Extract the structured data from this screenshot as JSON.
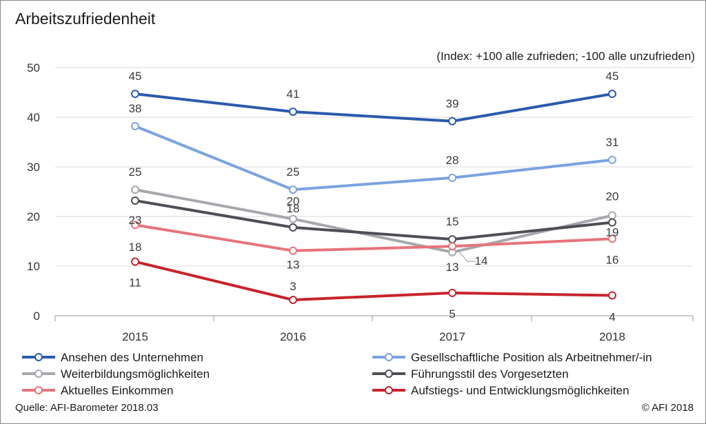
{
  "title": "Arbeitszufriedenheit",
  "subtitle": "(Index: +100 alle zufrieden; -100 alle unzufrieden)",
  "source": "Quelle: AFI-Barometer 2018.03",
  "copyright": "© AFI 2018",
  "chart_data": {
    "type": "line",
    "title": "Arbeitszufriedenheit",
    "subtitle": "(Index: +100 alle zufrieden; -100 alle unzufrieden)",
    "x": [
      "2015",
      "2016",
      "2017",
      "2018"
    ],
    "ylim": [
      0,
      50
    ],
    "yticks": [
      0,
      10,
      20,
      30,
      40,
      50
    ],
    "grid": true,
    "legend_position": "bottom",
    "series": [
      {
        "name": "Ansehen des Unternehmen",
        "color": "#2b5aad",
        "values": [
          44.7,
          41.1,
          39.2,
          44.7
        ],
        "labels": [
          "45",
          "41",
          "39",
          "45"
        ]
      },
      {
        "name": "Gesellschaftliche Position als Arbeitnehmer/-in",
        "color": "#7aa3e0",
        "values": [
          38.2,
          25.4,
          27.8,
          31.4
        ],
        "labels": [
          "38",
          "25",
          "28",
          "31"
        ]
      },
      {
        "name": "Weiterbildungsmöglichkeiten",
        "color": "#a6a8ad",
        "values": [
          25.4,
          19.5,
          12.8,
          20.2
        ],
        "labels": [
          "25",
          "20",
          "13",
          "20"
        ]
      },
      {
        "name": "Führungsstil des Vorgesetzten",
        "color": "#4d4f55",
        "values": [
          23.2,
          17.8,
          15.4,
          18.8
        ],
        "labels": [
          "23",
          "18",
          "15",
          "19"
        ]
      },
      {
        "name": "Aktuelles Einkommen",
        "color": "#e7737a",
        "values": [
          18.3,
          13.1,
          14.0,
          15.5
        ],
        "labels": [
          "18",
          "13",
          "14",
          "16"
        ]
      },
      {
        "name": "Aufstiegs- und Entwicklungsmöglichkeiten",
        "color": "#c8232c",
        "values": [
          10.9,
          3.2,
          4.6,
          4.1
        ],
        "labels": [
          "11",
          "3",
          "5",
          "4"
        ]
      }
    ]
  }
}
